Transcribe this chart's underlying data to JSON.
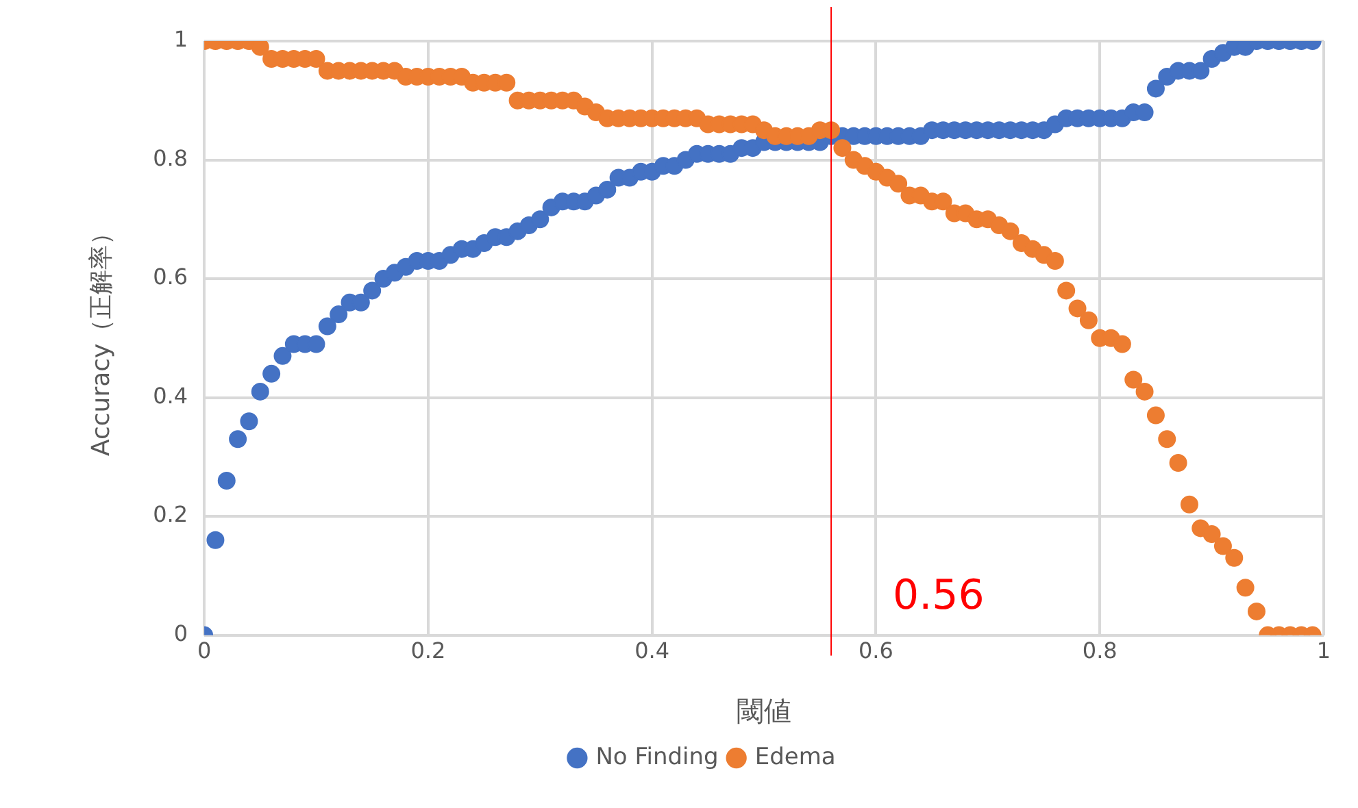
{
  "chart_data": {
    "type": "scatter",
    "xlabel": "閾値",
    "ylabel": "Accuracy（正解率）",
    "x": [
      0,
      0.01,
      0.02,
      0.03,
      0.04,
      0.05,
      0.06,
      0.07,
      0.08,
      0.09,
      0.1,
      0.11,
      0.12,
      0.13,
      0.14,
      0.15,
      0.16,
      0.17,
      0.18,
      0.19,
      0.2,
      0.21,
      0.22,
      0.23,
      0.24,
      0.25,
      0.26,
      0.27,
      0.28,
      0.29,
      0.3,
      0.31,
      0.32,
      0.33,
      0.34,
      0.35,
      0.36,
      0.37,
      0.38,
      0.39,
      0.4,
      0.41,
      0.42,
      0.43,
      0.44,
      0.45,
      0.46,
      0.47,
      0.48,
      0.49,
      0.5,
      0.51,
      0.52,
      0.53,
      0.54,
      0.55,
      0.56,
      0.57,
      0.58,
      0.59,
      0.6,
      0.61,
      0.62,
      0.63,
      0.64,
      0.65,
      0.66,
      0.67,
      0.68,
      0.69,
      0.7,
      0.71,
      0.72,
      0.73,
      0.74,
      0.75,
      0.76,
      0.77,
      0.78,
      0.79,
      0.8,
      0.81,
      0.82,
      0.83,
      0.84,
      0.85,
      0.86,
      0.87,
      0.88,
      0.89,
      0.9,
      0.91,
      0.92,
      0.93,
      0.94,
      0.95,
      0.96,
      0.97,
      0.98,
      0.99
    ],
    "series": [
      {
        "name": "No Finding",
        "color": "#4472c4",
        "values": [
          0,
          0.16,
          0.26,
          0.33,
          0.36,
          0.41,
          0.44,
          0.47,
          0.49,
          0.49,
          0.49,
          0.52,
          0.54,
          0.56,
          0.56,
          0.58,
          0.6,
          0.61,
          0.62,
          0.63,
          0.63,
          0.63,
          0.64,
          0.65,
          0.65,
          0.66,
          0.67,
          0.67,
          0.68,
          0.69,
          0.7,
          0.72,
          0.73,
          0.73,
          0.73,
          0.74,
          0.75,
          0.77,
          0.77,
          0.78,
          0.78,
          0.79,
          0.79,
          0.8,
          0.81,
          0.81,
          0.81,
          0.81,
          0.82,
          0.82,
          0.83,
          0.83,
          0.83,
          0.83,
          0.83,
          0.83,
          0.84,
          0.84,
          0.84,
          0.84,
          0.84,
          0.84,
          0.84,
          0.84,
          0.84,
          0.85,
          0.85,
          0.85,
          0.85,
          0.85,
          0.85,
          0.85,
          0.85,
          0.85,
          0.85,
          0.85,
          0.86,
          0.87,
          0.87,
          0.87,
          0.87,
          0.87,
          0.87,
          0.88,
          0.88,
          0.92,
          0.94,
          0.95,
          0.95,
          0.95,
          0.97,
          0.98,
          0.99,
          0.99,
          1,
          1,
          1,
          1,
          1,
          1
        ]
      },
      {
        "name": "Edema",
        "color": "#ed7d31",
        "values": [
          1,
          1,
          1,
          1,
          1,
          0.99,
          0.97,
          0.97,
          0.97,
          0.97,
          0.97,
          0.95,
          0.95,
          0.95,
          0.95,
          0.95,
          0.95,
          0.95,
          0.94,
          0.94,
          0.94,
          0.94,
          0.94,
          0.94,
          0.93,
          0.93,
          0.93,
          0.93,
          0.9,
          0.9,
          0.9,
          0.9,
          0.9,
          0.9,
          0.89,
          0.88,
          0.87,
          0.87,
          0.87,
          0.87,
          0.87,
          0.87,
          0.87,
          0.87,
          0.87,
          0.86,
          0.86,
          0.86,
          0.86,
          0.86,
          0.85,
          0.84,
          0.84,
          0.84,
          0.84,
          0.85,
          0.85,
          0.82,
          0.8,
          0.79,
          0.78,
          0.77,
          0.76,
          0.74,
          0.74,
          0.73,
          0.73,
          0.71,
          0.71,
          0.7,
          0.7,
          0.69,
          0.68,
          0.66,
          0.65,
          0.64,
          0.63,
          0.58,
          0.55,
          0.53,
          0.5,
          0.5,
          0.49,
          0.43,
          0.41,
          0.37,
          0.33,
          0.29,
          0.22,
          0.18,
          0.17,
          0.15,
          0.13,
          0.08,
          0.04,
          0,
          0,
          0,
          0,
          0
        ]
      }
    ],
    "xlim": [
      0,
      1
    ],
    "xticks": [
      0,
      0.2,
      0.4,
      0.6,
      0.8,
      1
    ],
    "ylim": [
      0,
      1
    ],
    "yticks": [
      0,
      0.2,
      0.4,
      0.6,
      0.8,
      1
    ],
    "ref_lines": [
      {
        "axis": "x",
        "value": 0.56,
        "label": "0.56",
        "color": "#ff0000"
      }
    ],
    "grid": true,
    "legend": "bottom",
    "marker": "circle"
  }
}
